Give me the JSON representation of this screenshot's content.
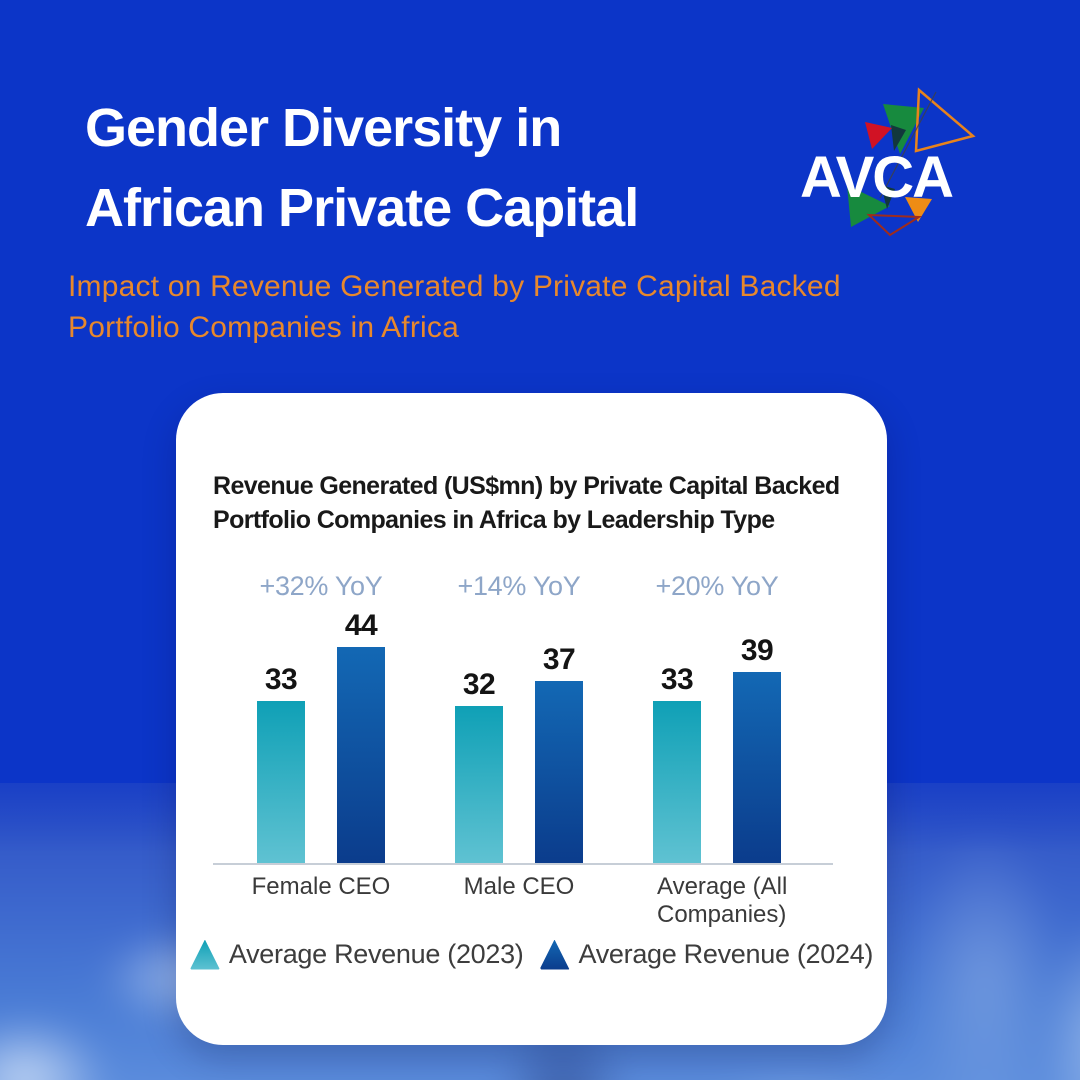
{
  "page": {
    "background_color": "#0c35c8"
  },
  "header": {
    "title_line1": "Gender Diversity in",
    "title_line2": "African Private Capital",
    "subtitle_line1": "Impact on Revenue Generated by Private Capital Backed",
    "subtitle_line2": "Portfolio Companies in Africa",
    "title_color": "#ffffff",
    "subtitle_color": "#e8882c"
  },
  "logo": {
    "wordmark": "AVCA",
    "colors": {
      "green": "#178a3e",
      "red": "#d11224",
      "orange": "#ee8c15",
      "outline_orange": "#e8831c",
      "outline_red": "#9e2c1c",
      "dark": "#12383c",
      "text": "#ffffff"
    }
  },
  "card": {
    "background": "#ffffff"
  },
  "chart_data": {
    "type": "bar",
    "title": "Revenue Generated (US$mn) by Private Capital Backed Portfolio Companies in Africa by Leadership Type",
    "unit": "US$mn",
    "categories": [
      "Female CEO",
      "Male CEO",
      "Average (All Companies)"
    ],
    "series": [
      {
        "name": "Average Revenue (2023)",
        "values": [
          33,
          32,
          33
        ],
        "color_top": "#0fa0b6",
        "color_bottom": "#5fc2d2"
      },
      {
        "name": "Average Revenue (2024)",
        "values": [
          44,
          37,
          39
        ],
        "color_top": "#1368b4",
        "color_bottom": "#0b3c8c"
      }
    ],
    "yoy_labels": [
      "+32% YoY",
      "+14% YoY",
      "+20% YoY"
    ],
    "yoy_color": "#8ea6c8",
    "xlabel": "",
    "ylabel": "",
    "ylim": [
      0,
      47
    ],
    "grid": false,
    "legend_position": "bottom"
  }
}
